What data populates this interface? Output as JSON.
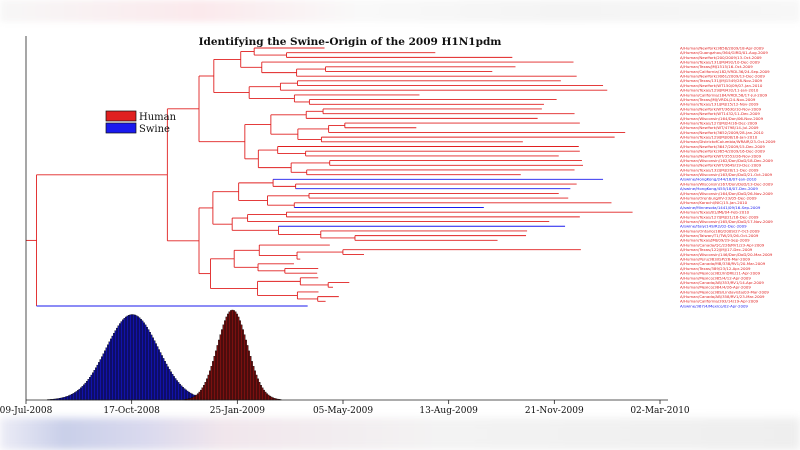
{
  "colors": {
    "human": "#e02020",
    "swine": "#1a1aee",
    "human_dist": "#7a1010",
    "swine_dist": "#1212a8"
  },
  "chart_data": {
    "type": "phylogenetic-tree-with-distributions",
    "title": "Identifying the Swine-Origin of the 2009 H1N1pdm",
    "x_axis": {
      "range": [
        "2008-07-09",
        "2010-03-02"
      ],
      "ticks": [
        "09-Jul-2008",
        "17-Oct-2008",
        "25-Jan-2009",
        "05-May-2009",
        "13-Aug-2009",
        "21-Nov-2009",
        "02-Mar-2010"
      ]
    },
    "legend": {
      "placement": "upper-left",
      "items": [
        {
          "label": "Human",
          "color": "human"
        },
        {
          "label": "Swine",
          "color": "swine"
        }
      ]
    },
    "distributions": [
      {
        "series": "Swine",
        "peak_date": "2008-10-17",
        "relative_height": 0.95
      },
      {
        "series": "Human",
        "peak_date": "2009-01-20",
        "relative_height": 1.0
      }
    ],
    "leaves": [
      {
        "label": "A/Human/NewYork/3658/2009/18-Apr-2009",
        "host": "human"
      },
      {
        "label": "A/Human/Guangzhou/364/GIRD/01-Aug-2009",
        "host": "human"
      },
      {
        "label": "A/Human/NewYork/200/2009/13-Oct-2009",
        "host": "human"
      },
      {
        "label": "A/Human/Texas/131/JMJ492/10-Dec-2009",
        "host": "human"
      },
      {
        "label": "A/Human/Texas/JMJ1515/16-Oct-2009",
        "host": "human"
      },
      {
        "label": "A/Human/California/182/VRDL36/24-Sep-2009",
        "host": "human"
      },
      {
        "label": "A/Human/NewYork/3061/2009/13-Dec-2009",
        "host": "human"
      },
      {
        "label": "A/Human/Texas/131/JMJ1549/28-Nov-2009",
        "host": "human"
      },
      {
        "label": "A/Human/NewYork/WT150/09/07-Jan-2010",
        "host": "human"
      },
      {
        "label": "A/Human/Texas/129/JMJ432/11-Jan-2010",
        "host": "human"
      },
      {
        "label": "A/Human/California/184/VRDL58/17-Jul-2009",
        "host": "human"
      },
      {
        "label": "A/Human/Texas/JMJ/VRDL/24-Nov-2009",
        "host": "human"
      },
      {
        "label": "A/Human/Texas/131/JMJ/15/12-Nov-2009",
        "host": "human"
      },
      {
        "label": "A/Human/NewYork/WT/3630/10-Nov-2009",
        "host": "human"
      },
      {
        "label": "A/Human/NewYork/WT1432/11-Dec-2009",
        "host": "human"
      },
      {
        "label": "A/Human/Wisconsin/164/Don/06-Nov-2009",
        "host": "human"
      },
      {
        "label": "A/Human/Texas/127/JMJ24/16-Dec-2009",
        "host": "human"
      },
      {
        "label": "A/Human/NewYork/WT/4798/14-Jul-2009",
        "host": "human"
      },
      {
        "label": "A/Human/NewYork/3652/2009/28-Jan-2010",
        "host": "human"
      },
      {
        "label": "A/Human/Texas/129/JMJ/08/18-Jan-2010",
        "host": "human"
      },
      {
        "label": "A/Human/DistrictofColumbia/WRAIR/23-Oct-2009",
        "host": "human"
      },
      {
        "label": "A/Human/NewYork/3647/2009/15-Dec-2009",
        "host": "human"
      },
      {
        "label": "A/Human/NewYork/3654/2009/16-Dec-2009",
        "host": "human"
      },
      {
        "label": "A/Human/NewYork/WT/3553/26-Nov-2009",
        "host": "human"
      },
      {
        "label": "A/Human/Wisconsin/162/Don/DoD/18-Dec-2009",
        "host": "human"
      },
      {
        "label": "A/Human/NewYork/WT/3649/19-Dec-2009",
        "host": "human"
      },
      {
        "label": "A/Human/Texas/132/JMJ/28/11-Dec-2009",
        "host": "human"
      },
      {
        "label": "A/Human/Wisconsin/163/Don/DoD/21-Oct-2009",
        "host": "human"
      },
      {
        "label": "A/swine/HongKong/244/18/07-Jan-2010",
        "host": "swine"
      },
      {
        "label": "A/Human/Wisconsin/167/Don/DoD/13-Dec-2009",
        "host": "human"
      },
      {
        "label": "A/swine/HongKong/455/18/07-Dec-2009",
        "host": "swine"
      },
      {
        "label": "A/Human/Wisconsin/164/Don/DoD/26-Nov-2009",
        "host": "human"
      },
      {
        "label": "A/Human/Orenburg/IIV-23/05-Dec-2009",
        "host": "human"
      },
      {
        "label": "A/Human/Karachi/NIC/15-Jan-2010",
        "host": "human"
      },
      {
        "label": "A/swine/Minnesota/1441/09/16-Sep-2009",
        "host": "swine"
      },
      {
        "label": "A/Human/Texas/81/JMJ/04-Feb-2010",
        "host": "human"
      },
      {
        "label": "A/Human/Texas/127/JMJ/21/16-Dec-2009",
        "host": "human"
      },
      {
        "label": "A/Human/Wisconsin/165/Don/DoD/17-Nov-2009",
        "host": "human"
      },
      {
        "label": "A/swine/Italy/149/R2/02-Dec-2009",
        "host": "swine"
      },
      {
        "label": "A/Human/Ontario/180/2009/27-Oct-2009",
        "host": "human"
      },
      {
        "label": "A/Human/Taiwan/T1/TW/25/26-Oct-2009",
        "host": "human"
      },
      {
        "label": "A/Human/Texas/JMJ/09/29-Sep-2009",
        "host": "human"
      },
      {
        "label": "A/Human/Canada/QC/226/RV1/23-Apr-2009",
        "host": "human"
      },
      {
        "label": "A/Human/Texas/122/JMJ/17-Dec-2009",
        "host": "human"
      },
      {
        "label": "A/Human/Wisconsin/146/Don/DoD/20-Mar-2009",
        "host": "human"
      },
      {
        "label": "A/Human/Peru/363/ISP/26-Mar-2009",
        "host": "human"
      },
      {
        "label": "A/Human/Canada/MB/338/RV1/20-Mar-2009",
        "host": "human"
      },
      {
        "label": "A/Human/Texas/389/23/12-Apr-2009",
        "host": "human"
      },
      {
        "label": "A/Human/Mexico/382/InDRE/11-Apr-2009",
        "host": "human"
      },
      {
        "label": "A/Human/Mexico/385/4/12-Apr-2009",
        "host": "human"
      },
      {
        "label": "A/Human/Canada/AB/353/RV1/14-Apr-2009",
        "host": "human"
      },
      {
        "label": "A/Human/Mexico/384/4/26-Apr-2009",
        "host": "human"
      },
      {
        "label": "A/Human/Mexico/389/Lindavista/03-Mar-2009",
        "host": "human"
      },
      {
        "label": "A/Human/Canada/AB/358/RV1/23-Mar-2009",
        "host": "human"
      },
      {
        "label": "A/Human/California/393/14/19-Apr-2009",
        "host": "human"
      },
      {
        "label": "A/swine/367/4/Mexico/02-Apr-2009",
        "host": "swine"
      }
    ]
  }
}
